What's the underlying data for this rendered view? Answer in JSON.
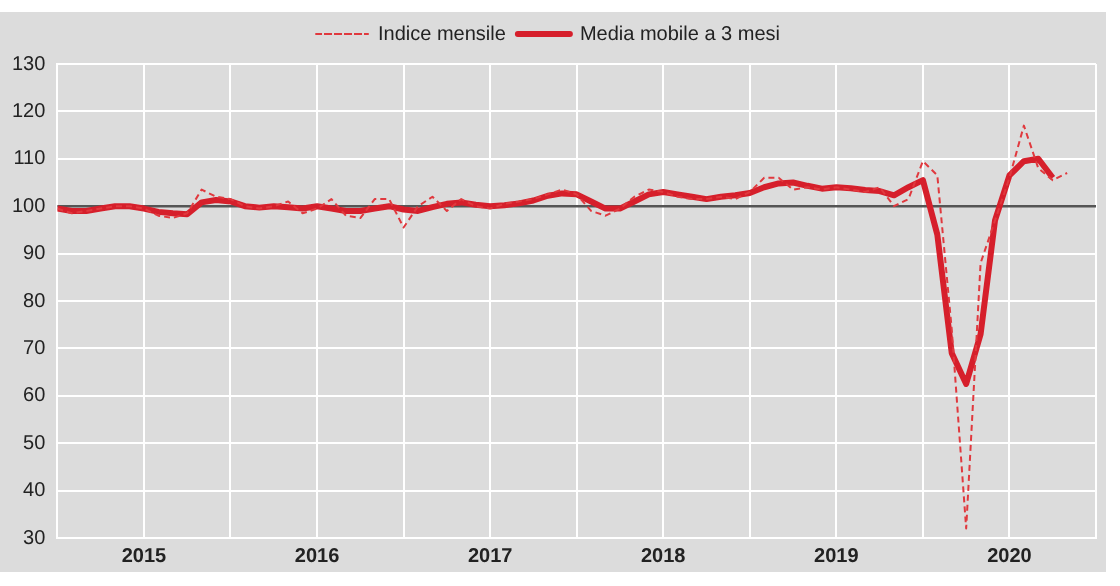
{
  "chart_data": {
    "type": "line",
    "legend": "top",
    "marker": "none",
    "grid": true,
    "xlim": [
      "2015-01",
      "2021-01"
    ],
    "xticks": [
      {
        "value": "2015-01",
        "label": null
      },
      {
        "value": "2015-07",
        "label": "2015"
      },
      {
        "value": "2016-01",
        "label": null
      },
      {
        "value": "2016-07",
        "label": "2016"
      },
      {
        "value": "2017-01",
        "label": null
      },
      {
        "value": "2017-07",
        "label": "2017"
      },
      {
        "value": "2018-01",
        "label": null
      },
      {
        "value": "2018-07",
        "label": "2018"
      },
      {
        "value": "2019-01",
        "label": null
      },
      {
        "value": "2019-07",
        "label": "2019"
      },
      {
        "value": "2020-01",
        "label": null
      },
      {
        "value": "2020-07",
        "label": "2020"
      },
      {
        "value": "2021-01",
        "label": null
      }
    ],
    "ylim": [
      30,
      130
    ],
    "yticks": [
      30,
      40,
      50,
      60,
      70,
      80,
      90,
      100,
      110,
      120,
      130
    ],
    "ref_lines": [
      {
        "axis": "y",
        "value": 100,
        "color": "#555555"
      }
    ],
    "series": [
      {
        "name": "Indice mensile",
        "color": "#e0393e",
        "line_style": "dashed",
        "x": [
          "2015-01",
          "2015-02",
          "2015-03",
          "2015-04",
          "2015-05",
          "2015-06",
          "2015-07",
          "2015-08",
          "2015-09",
          "2015-10",
          "2015-11",
          "2015-12",
          "2016-01",
          "2016-02",
          "2016-03",
          "2016-04",
          "2016-05",
          "2016-06",
          "2016-07",
          "2016-08",
          "2016-09",
          "2016-10",
          "2016-11",
          "2016-12",
          "2017-01",
          "2017-02",
          "2017-03",
          "2017-04",
          "2017-05",
          "2017-06",
          "2017-07",
          "2017-08",
          "2017-09",
          "2017-10",
          "2017-11",
          "2017-12",
          "2018-01",
          "2018-02",
          "2018-03",
          "2018-04",
          "2018-05",
          "2018-06",
          "2018-07",
          "2018-08",
          "2018-09",
          "2018-10",
          "2018-11",
          "2018-12",
          "2019-01",
          "2019-02",
          "2019-03",
          "2019-04",
          "2019-05",
          "2019-06",
          "2019-07",
          "2019-08",
          "2019-09",
          "2019-10",
          "2019-11",
          "2019-12",
          "2020-01",
          "2020-02",
          "2020-03",
          "2020-04",
          "2020-05",
          "2020-06",
          "2020-07",
          "2020-08",
          "2020-09",
          "2020-10",
          "2020-11"
        ],
        "values": [
          99.5,
          98.5,
          99,
          99.5,
          100,
          100,
          99.5,
          98,
          97.5,
          98.5,
          103.5,
          102,
          101.5,
          100,
          99.5,
          100,
          101,
          98.5,
          99.5,
          101.5,
          98,
          97.5,
          101.5,
          101.5,
          95.5,
          100,
          102,
          99,
          101.5,
          100,
          99.5,
          100.5,
          101,
          101.5,
          102.5,
          103.5,
          102.5,
          99,
          98,
          99.5,
          102,
          103.5,
          103,
          102,
          101.5,
          101.5,
          102,
          101.5,
          103,
          106,
          106,
          103.5,
          104,
          103.5,
          104,
          103.5,
          103,
          104,
          100,
          101.5,
          109.5,
          106.5,
          74,
          32,
          88,
          97,
          106,
          117,
          108,
          105.5,
          107
        ]
      },
      {
        "name": "Media mobile a 3 mesi",
        "color": "#d61f2b",
        "line_style": "solid",
        "x": [
          "2015-01",
          "2015-02",
          "2015-03",
          "2015-04",
          "2015-05",
          "2015-06",
          "2015-07",
          "2015-08",
          "2015-09",
          "2015-10",
          "2015-11",
          "2015-12",
          "2016-01",
          "2016-02",
          "2016-03",
          "2016-04",
          "2016-05",
          "2016-06",
          "2016-07",
          "2016-08",
          "2016-09",
          "2016-10",
          "2016-11",
          "2016-12",
          "2017-01",
          "2017-02",
          "2017-03",
          "2017-04",
          "2017-05",
          "2017-06",
          "2017-07",
          "2017-08",
          "2017-09",
          "2017-10",
          "2017-11",
          "2017-12",
          "2018-01",
          "2018-02",
          "2018-03",
          "2018-04",
          "2018-05",
          "2018-06",
          "2018-07",
          "2018-08",
          "2018-09",
          "2018-10",
          "2018-11",
          "2018-12",
          "2019-01",
          "2019-02",
          "2019-03",
          "2019-04",
          "2019-05",
          "2019-06",
          "2019-07",
          "2019-08",
          "2019-09",
          "2019-10",
          "2019-11",
          "2019-12",
          "2020-01",
          "2020-02",
          "2020-03",
          "2020-04",
          "2020-05",
          "2020-06",
          "2020-07",
          "2020-08",
          "2020-09",
          "2020-10"
        ],
        "values": [
          99.5,
          99,
          99,
          99.5,
          100,
          100,
          99.5,
          98.8,
          98.5,
          98.3,
          100.8,
          101.3,
          101,
          100,
          99.7,
          100,
          99.8,
          99.5,
          100,
          99.5,
          99,
          99,
          99.5,
          100,
          99.3,
          99,
          99.8,
          100.5,
          100.8,
          100.3,
          100,
          100.2,
          100.6,
          101.2,
          102.2,
          102.7,
          102.5,
          101,
          99.5,
          99.5,
          101,
          102.5,
          103,
          102.5,
          102,
          101.5,
          102,
          102.3,
          102.8,
          104,
          104.8,
          105,
          104.3,
          103.7,
          104,
          103.8,
          103.4,
          103.2,
          102.3,
          104,
          105.5,
          94,
          69,
          62.5,
          73,
          97,
          106.5,
          109.5,
          110,
          106
        ]
      }
    ]
  }
}
